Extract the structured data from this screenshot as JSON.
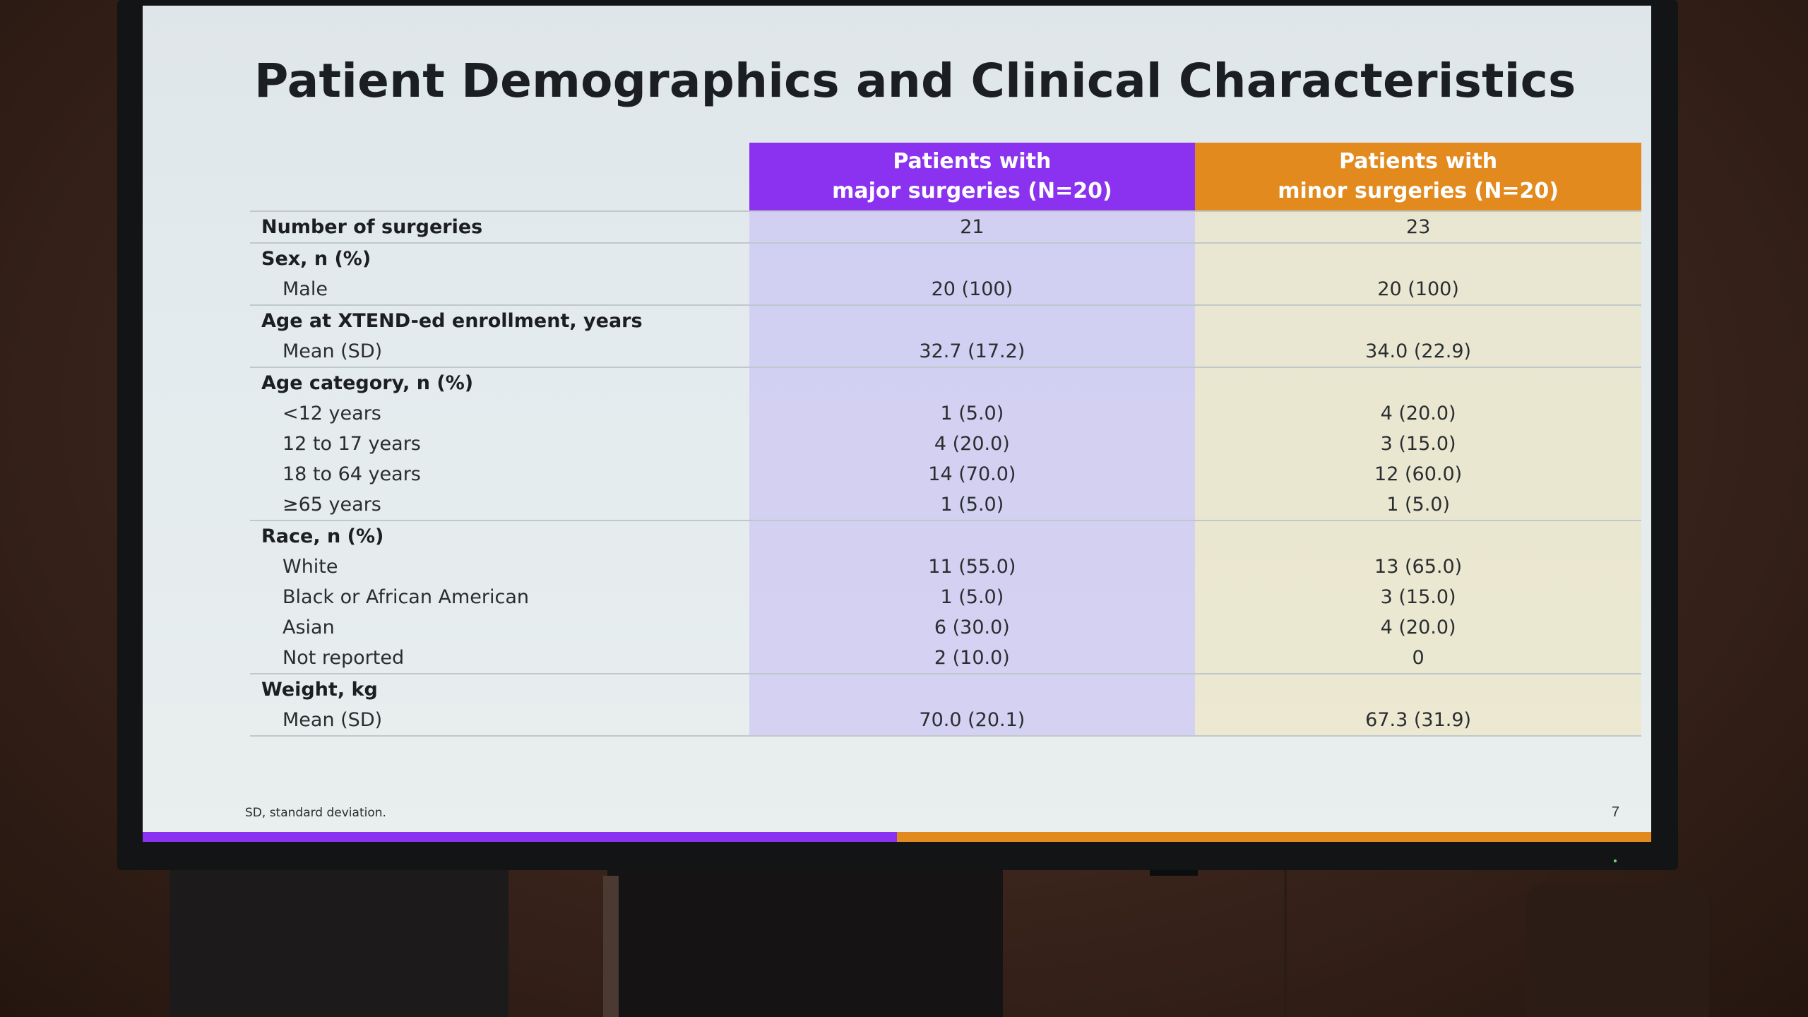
{
  "slide": {
    "title": "Patient Demographics and Clinical Characteristics",
    "footnote": "SD, standard deviation.",
    "page_number": "7"
  },
  "colors": {
    "major": "#8a32f0",
    "minor": "#e28a1e"
  },
  "table": {
    "headers": {
      "major_line1": "Patients with",
      "major_line2": "major surgeries  (N=20)",
      "minor_line1": "Patients with",
      "minor_line2": "minor surgeries (N=20)"
    },
    "rows": [
      {
        "label": "Number of surgeries",
        "major": "21",
        "minor": "23"
      },
      {
        "label": "Sex, n (%)"
      },
      {
        "label": "Male",
        "major": "20 (100)",
        "minor": "20 (100)"
      },
      {
        "label": "Age at XTEND-ed enrollment, years"
      },
      {
        "label": "Mean (SD)",
        "major": "32.7 (17.2)",
        "minor": "34.0 (22.9)"
      },
      {
        "label": "Age category, n (%)"
      },
      {
        "label": "<12 years",
        "major": "1 (5.0)",
        "minor": "4 (20.0)"
      },
      {
        "label": "12 to 17 years",
        "major": "4 (20.0)",
        "minor": "3 (15.0)"
      },
      {
        "label": "18 to 64 years",
        "major": "14 (70.0)",
        "minor": "12 (60.0)"
      },
      {
        "label": "≥65 years",
        "major": "1 (5.0)",
        "minor": "1 (5.0)"
      },
      {
        "label": "Race, n (%)"
      },
      {
        "label": "White",
        "major": "11 (55.0)",
        "minor": "13 (65.0)"
      },
      {
        "label": "Black or African American",
        "major": "1 (5.0)",
        "minor": "3 (15.0)"
      },
      {
        "label": "Asian",
        "major": "6 (30.0)",
        "minor": "4 (20.0)"
      },
      {
        "label": "Not reported",
        "major": "2 (10.0)",
        "minor": "0"
      },
      {
        "label": "Weight, kg"
      },
      {
        "label": "Mean (SD)",
        "major": "70.0 (20.1)",
        "minor": "67.3 (31.9)"
      }
    ]
  }
}
